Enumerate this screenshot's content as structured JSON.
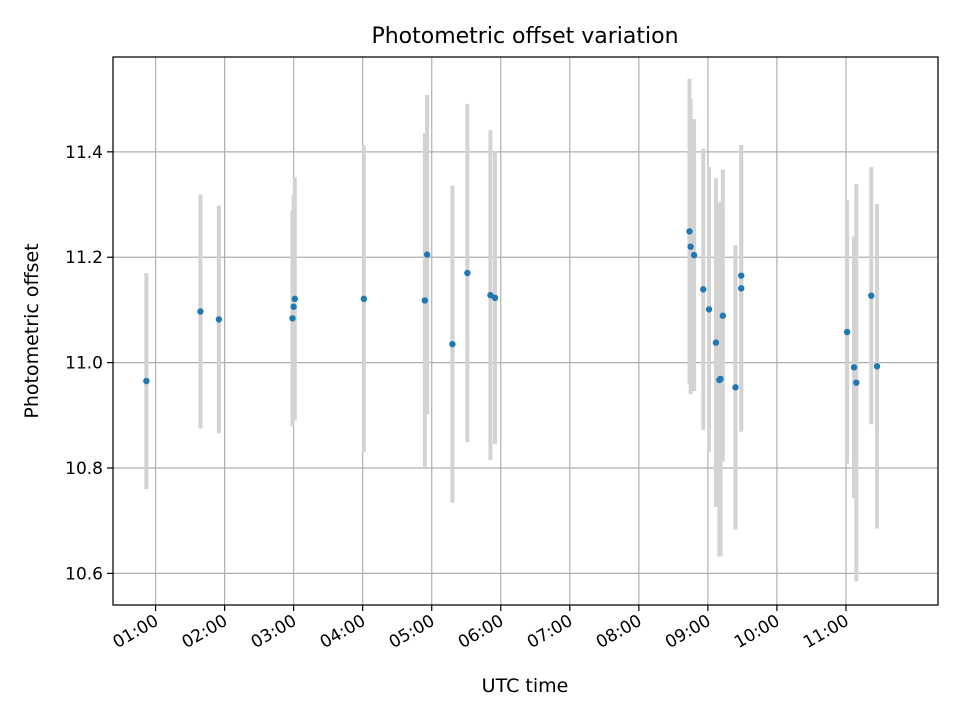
{
  "chart_data": {
    "type": "scatter",
    "title": "Photometric offset variation",
    "xlabel": "UTC time",
    "ylabel": "Photometric offset",
    "grid": true,
    "xlim": [
      "00:23",
      "12:20"
    ],
    "ylim": [
      10.54,
      11.58
    ],
    "x_ticks": [
      "01:00",
      "02:00",
      "03:00",
      "04:00",
      "05:00",
      "06:00",
      "07:00",
      "08:00",
      "09:00",
      "10:00",
      "11:00"
    ],
    "y_ticks": [
      "10.6",
      "10.8",
      "11.0",
      "11.2",
      "11.4"
    ],
    "point_color": "#1f77b4",
    "errorbar_color": "#d3d3d3",
    "points": [
      {
        "x": "00:52",
        "y": 10.965,
        "yerr": 0.205
      },
      {
        "x": "01:39",
        "y": 11.097,
        "yerr": 0.222
      },
      {
        "x": "01:55",
        "y": 11.082,
        "yerr": 0.216
      },
      {
        "x": "02:59",
        "y": 11.084,
        "yerr": 0.205
      },
      {
        "x": "03:00",
        "y": 11.106,
        "yerr": 0.212
      },
      {
        "x": "03:01",
        "y": 11.121,
        "yerr": 0.231
      },
      {
        "x": "04:01",
        "y": 11.121,
        "yerr": 0.291
      },
      {
        "x": "04:54",
        "y": 11.118,
        "yerr": 0.318
      },
      {
        "x": "04:56",
        "y": 11.205,
        "yerr": 0.303
      },
      {
        "x": "05:18",
        "y": 11.035,
        "yerr": 0.301
      },
      {
        "x": "05:31",
        "y": 11.17,
        "yerr": 0.321
      },
      {
        "x": "05:51",
        "y": 11.128,
        "yerr": 0.313
      },
      {
        "x": "05:55",
        "y": 11.123,
        "yerr": 0.278
      },
      {
        "x": "08:44",
        "y": 11.249,
        "yerr": 0.29
      },
      {
        "x": "08:45",
        "y": 11.22,
        "yerr": 0.28
      },
      {
        "x": "08:48",
        "y": 11.204,
        "yerr": 0.258
      },
      {
        "x": "08:56",
        "y": 11.139,
        "yerr": 0.267
      },
      {
        "x": "09:01",
        "y": 11.101,
        "yerr": 0.27
      },
      {
        "x": "09:07",
        "y": 11.038,
        "yerr": 0.312
      },
      {
        "x": "09:10",
        "y": 10.967,
        "yerr": 0.335
      },
      {
        "x": "09:11",
        "y": 10.969,
        "yerr": 0.337
      },
      {
        "x": "09:13",
        "y": 11.089,
        "yerr": 0.277
      },
      {
        "x": "09:24",
        "y": 10.953,
        "yerr": 0.27
      },
      {
        "x": "09:29",
        "y": 11.141,
        "yerr": 0.272
      },
      {
        "x": "09:29",
        "y": 11.165,
        "yerr": 0.248
      },
      {
        "x": "11:01",
        "y": 11.058,
        "yerr": 0.25
      },
      {
        "x": "11:07",
        "y": 10.991,
        "yerr": 0.248
      },
      {
        "x": "11:09",
        "y": 10.962,
        "yerr": 0.377
      },
      {
        "x": "11:22",
        "y": 11.127,
        "yerr": 0.244
      },
      {
        "x": "11:27",
        "y": 10.993,
        "yerr": 0.308
      }
    ]
  }
}
